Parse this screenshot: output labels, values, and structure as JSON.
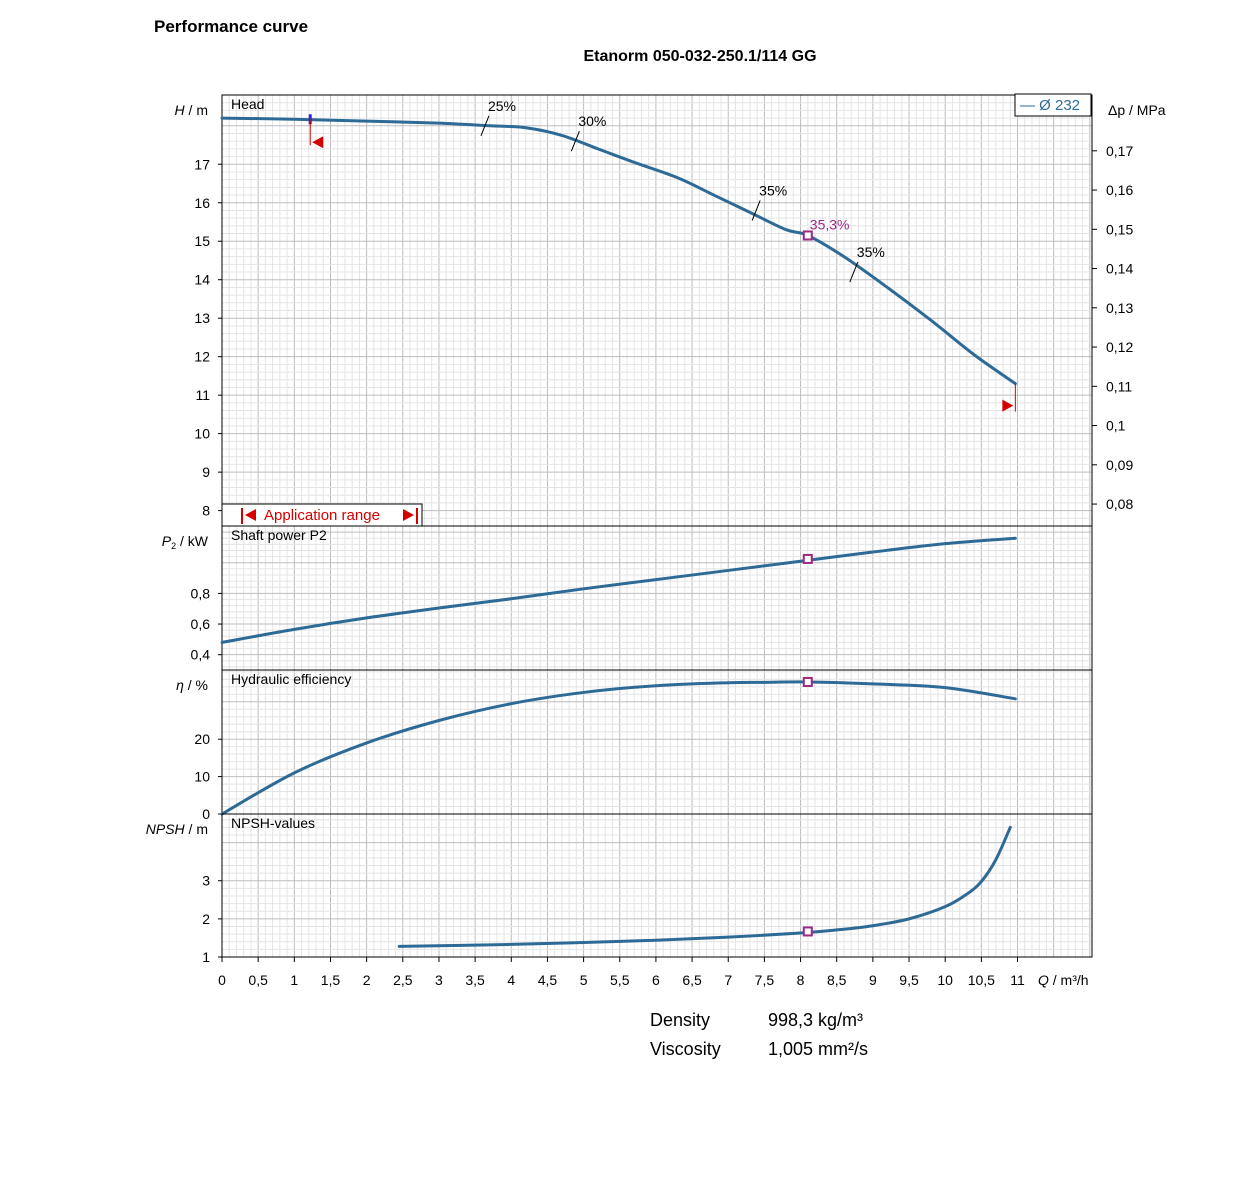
{
  "header": {
    "doc_title": "Performance curve",
    "pump_title": "Etanorm 050-032-250.1/114 GG"
  },
  "legend": {
    "label": "— Ø 232"
  },
  "application_range_label": "Application range",
  "colors": {
    "curve": "#2e6a96",
    "grid_major": "#bdbdbd",
    "grid_minor": "#e4e4e4",
    "marker": "#9b2a83",
    "range": "#d40000"
  },
  "x_axis": {
    "label_italic": "Q",
    "label_unit": " / m³/h",
    "ticks": [
      "0",
      "0,5",
      "1",
      "1,5",
      "2",
      "2,5",
      "3",
      "3,5",
      "4",
      "4,5",
      "5",
      "5,5",
      "6",
      "6,5",
      "7",
      "7,5",
      "8",
      "8,5",
      "9",
      "9,5",
      "10",
      "10,5",
      "11"
    ]
  },
  "operating_point": {
    "q": 8.1,
    "efficiency_label": "35,3%"
  },
  "fluid": {
    "rows": [
      {
        "key": "Density",
        "value": "998,3 kg/m³"
      },
      {
        "key": "Viscosity",
        "value": "1,005 mm²/s"
      }
    ]
  },
  "chart_data": [
    {
      "type": "line",
      "panel_title": "Head",
      "ylabel_italic": "H",
      "ylabel_unit": " / m",
      "ylim": [
        7.6,
        18.8
      ],
      "yticks": [
        8,
        9,
        10,
        11,
        12,
        13,
        14,
        15,
        16,
        17
      ],
      "right_axis": {
        "label": "Δp / MPa",
        "ticks": [
          {
            "label": "0,17",
            "h": 17.35
          },
          {
            "label": "0,16",
            "h": 16.33
          },
          {
            "label": "0,15",
            "h": 15.31
          },
          {
            "label": "0,14",
            "h": 14.29
          },
          {
            "label": "0,13",
            "h": 13.27
          },
          {
            "label": "0,12",
            "h": 12.25
          },
          {
            "label": "0,11",
            "h": 11.23
          },
          {
            "label": "0,1",
            "h": 10.21
          },
          {
            "label": "0,09",
            "h": 9.19
          },
          {
            "label": "0,08",
            "h": 8.17
          }
        ]
      },
      "series": [
        {
          "x": [
            0,
            1,
            2,
            3,
            3.7,
            4.2,
            4.7,
            5.2,
            5.7,
            6.3,
            6.8,
            7.3,
            7.8,
            8.1,
            8.6,
            9.2,
            9.8,
            10.4,
            10.97
          ],
          "y": [
            18.2,
            18.17,
            18.12,
            18.07,
            18.0,
            17.95,
            17.75,
            17.4,
            17.05,
            16.65,
            16.2,
            15.75,
            15.3,
            15.15,
            14.6,
            13.8,
            12.95,
            12.05,
            11.3
          ]
        }
      ],
      "efficiency_marks": [
        {
          "label": "25%",
          "x": 3.65,
          "y": 18.0
        },
        {
          "label": "30%",
          "x": 4.9,
          "y": 17.6
        },
        {
          "label": "35%",
          "x": 7.4,
          "y": 15.8
        },
        {
          "label": "35%",
          "x": 8.75,
          "y": 14.2
        }
      ],
      "operating_value": 15.15
    },
    {
      "type": "line",
      "panel_title": "Shaft power P2",
      "ylabel_italic": "P",
      "ylabel_sub": "2",
      "ylabel_unit": " / kW",
      "ylim": [
        0.3,
        1.24
      ],
      "yticks": [
        0.4,
        0.6,
        0.8
      ],
      "ytick_labels": [
        "0,4",
        "0,6",
        "0,8"
      ],
      "series": [
        {
          "x": [
            0,
            1,
            2,
            3,
            4,
            5,
            6,
            7,
            8,
            9,
            10,
            10.97
          ],
          "y": [
            0.48,
            0.565,
            0.64,
            0.705,
            0.765,
            0.83,
            0.89,
            0.95,
            1.01,
            1.07,
            1.125,
            1.16
          ]
        }
      ],
      "operating_value": 1.025
    },
    {
      "type": "line",
      "panel_title": "Hydraulic efficiency",
      "ylabel_italic": "η",
      "ylabel_unit": " / %",
      "ylim": [
        0,
        38.5
      ],
      "yticks": [
        0,
        10,
        20
      ],
      "series": [
        {
          "x": [
            0,
            1,
            2,
            3,
            4,
            5,
            6,
            7,
            7.5,
            8.1,
            9,
            10,
            10.97
          ],
          "y": [
            0,
            11,
            19,
            25,
            29.5,
            32.5,
            34.3,
            35.1,
            35.2,
            35.3,
            34.8,
            33.8,
            30.8
          ]
        }
      ],
      "operating_value": 35.3
    },
    {
      "type": "line",
      "panel_title": "NPSH-values",
      "ylabel_italic": "NPSH",
      "ylabel_unit": " / m",
      "ylim": [
        1,
        4.75
      ],
      "yticks": [
        1,
        2,
        3
      ],
      "series": [
        {
          "x": [
            2.45,
            4,
            5,
            6,
            7,
            8,
            8.5,
            9,
            9.5,
            10,
            10.3,
            10.5,
            10.7,
            10.9
          ],
          "y": [
            1.28,
            1.33,
            1.38,
            1.44,
            1.52,
            1.63,
            1.71,
            1.82,
            2.0,
            2.32,
            2.65,
            2.98,
            3.55,
            4.4
          ]
        }
      ],
      "operating_value": 1.67
    }
  ]
}
